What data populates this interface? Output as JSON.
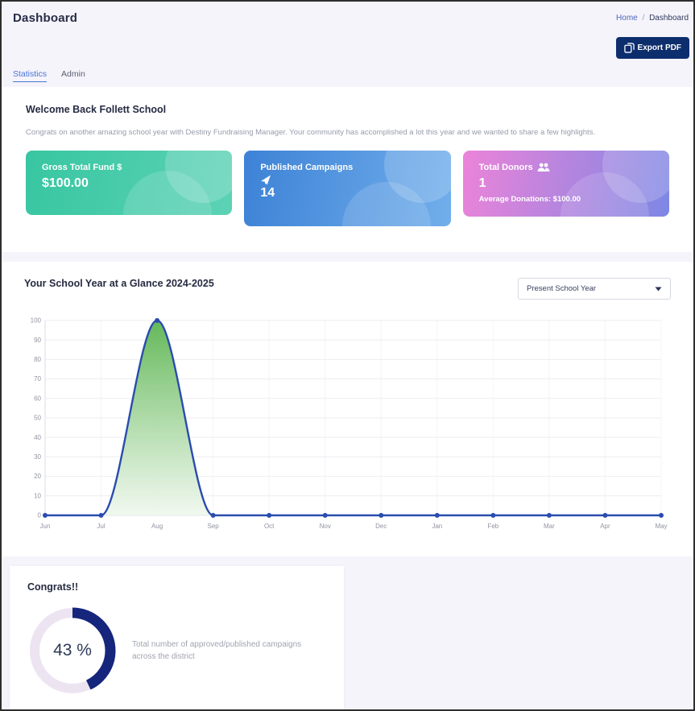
{
  "page": {
    "title": "Dashboard",
    "breadcrumb": {
      "home": "Home",
      "separator": "/",
      "current": "Dashboard"
    }
  },
  "toolbar": {
    "export_label": "Export PDF"
  },
  "tabs": [
    {
      "label": "Statistics",
      "active": true
    },
    {
      "label": "Admin",
      "active": false
    }
  ],
  "welcome": {
    "heading": "Welcome Back Follett School",
    "message": "Congrats on another amazing school year with Destiny Fundraising Manager. Your community has accomplished a lot this year and we wanted to share a few highlights."
  },
  "stat_cards": [
    {
      "title": "Gross Total Fund $",
      "value": "$100.00",
      "icon": "none",
      "gradient_start": "#38c6a1",
      "gradient_end": "#5cd2b5"
    },
    {
      "title": "Published Campaigns",
      "value": "14",
      "icon": "rocket-icon",
      "gradient_start": "#3d82d6",
      "gradient_end": "#71aeeb"
    },
    {
      "title": "Total Donors",
      "value": "1",
      "icon": "users-icon",
      "subtext": "Average Donations: $100.00",
      "gradient_start": "#ec83d9",
      "gradient_end": "#7d87e4"
    }
  ],
  "glance": {
    "heading": "Your School Year at a Glance 2024-2025",
    "dropdown_value": "Present School Year"
  },
  "chart_data": {
    "type": "area",
    "title": "Your School Year at a Glance 2024-2025",
    "x": [
      "Jun",
      "Jul",
      "Aug",
      "Sep",
      "Oct",
      "Nov",
      "Dec",
      "Jan",
      "Feb",
      "Mar",
      "Apr",
      "May"
    ],
    "values": [
      0,
      0,
      100,
      0,
      0,
      0,
      0,
      0,
      0,
      0,
      0,
      0
    ],
    "ylim": [
      0,
      100
    ],
    "y_ticks": [
      0,
      10,
      20,
      30,
      40,
      50,
      60,
      70,
      80,
      90,
      100
    ],
    "grid": true,
    "legend": "none",
    "line_color": "#2a4caf",
    "fill_top": "#5cb551",
    "fill_bottom": "#eef7ec",
    "axis_label_color": "#90949f"
  },
  "congrats": {
    "heading": "Congrats!!",
    "percent": 43,
    "percent_label": "43 %",
    "description": "Total number of approved/published campaigns across the district",
    "arc_color": "#16267c",
    "track_color": "#ede4f2"
  }
}
